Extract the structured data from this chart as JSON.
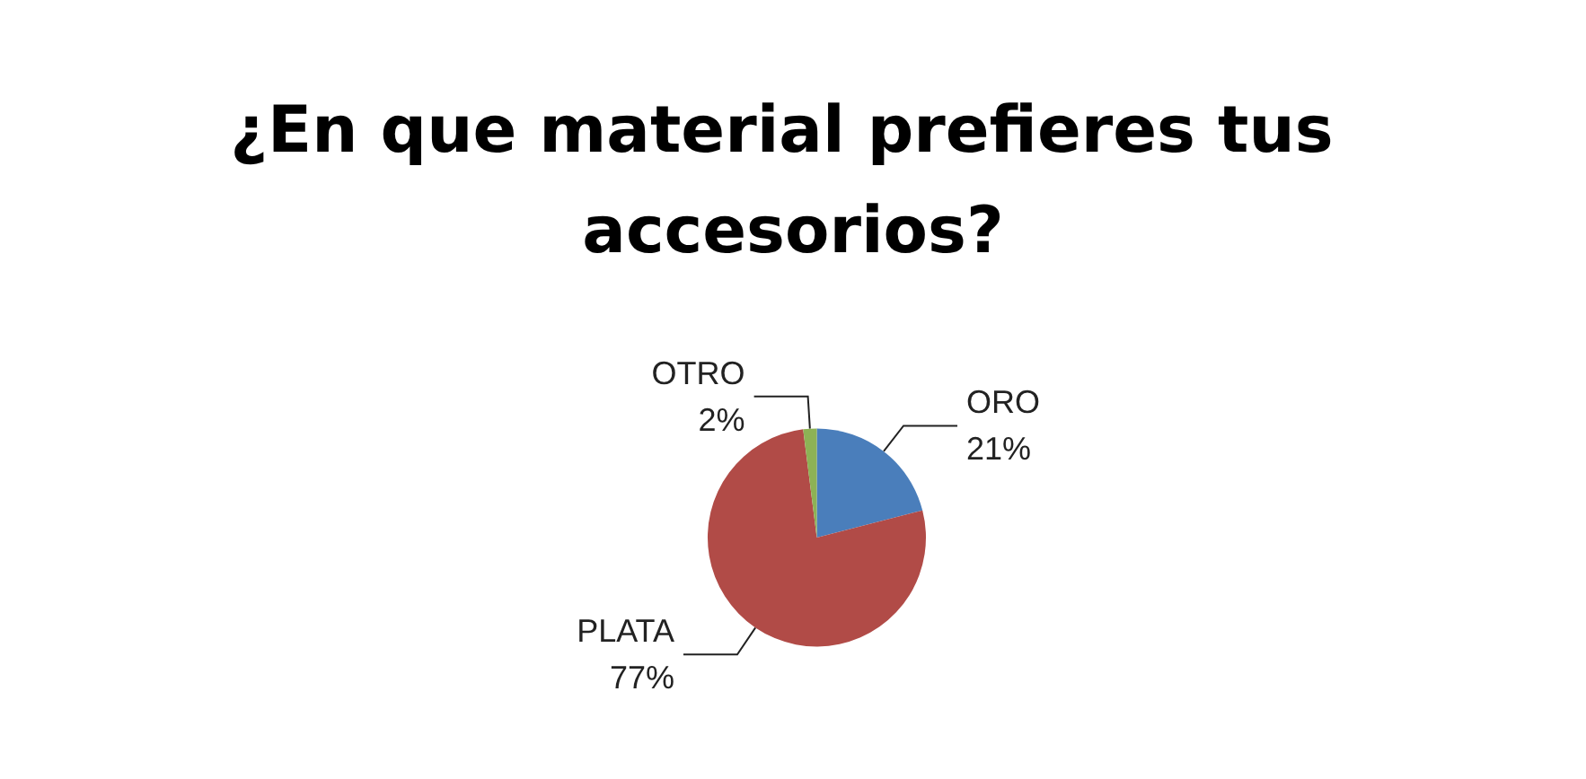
{
  "chart_data": {
    "type": "pie",
    "title": "¿En que material prefieres tus accesorios?",
    "categories": [
      "ORO",
      "PLATA",
      "OTRO"
    ],
    "values": [
      21,
      77,
      2
    ],
    "value_labels": [
      "21%",
      "77%",
      "2%"
    ],
    "colors": [
      "#4a7ebb",
      "#b14b47",
      "#8db255"
    ],
    "legend": false
  }
}
